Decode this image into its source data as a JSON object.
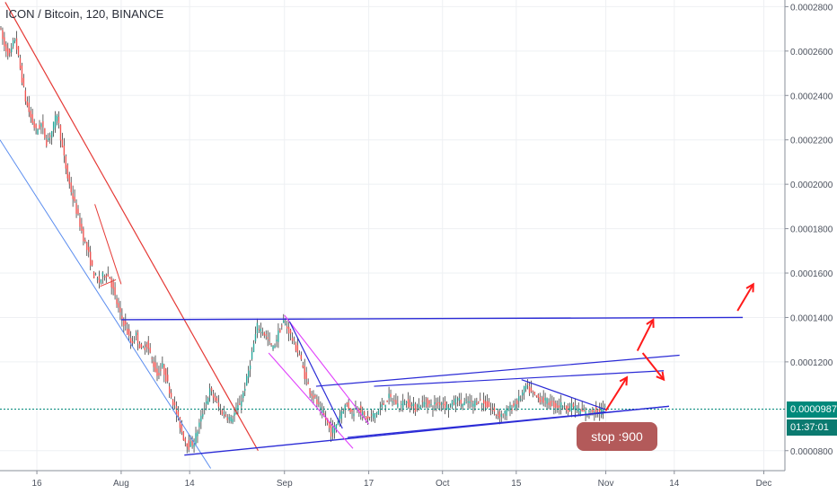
{
  "title": "ICON / Bitcoin, 120, BINANCE",
  "colors": {
    "up": "#26a69a",
    "down": "#ef5350",
    "wick": "#222222",
    "grid": "#eef0f3",
    "axis_text": "#4c525e",
    "blue_line": "#2b2bd6",
    "red_line": "#e53935",
    "magenta_line": "#e040fb",
    "light_blue_line": "#5b8def",
    "current_price_line": "#00897b",
    "current_price_bg": "#00897b",
    "countdown_bg": "#0b7a70",
    "annotation_bg": "#b35a5a",
    "arrow": "#ff1a1a"
  },
  "current_price_label": "0.0000987",
  "countdown_label": "01:37:01",
  "annotation_text": "stop :900",
  "chart_data": {
    "type": "candlestick",
    "x_tick_labels": [
      "16",
      "Aug",
      "14",
      "Sep",
      "17",
      "Oct",
      "15",
      "Nov",
      "14",
      "Dec"
    ],
    "x_tick_dates": [
      "2018-07-16",
      "2018-08-01",
      "2018-08-14",
      "2018-09-01",
      "2018-09-17",
      "2018-10-01",
      "2018-10-15",
      "2018-11-01",
      "2018-11-14",
      "2018-12-01"
    ],
    "x_range": [
      "2018-07-09",
      "2018-12-05"
    ],
    "y_range": [
      7.1e-05,
      0.000283
    ],
    "y_tick_labels": [
      "0.0002800",
      "0.0002600",
      "0.0002400",
      "0.0002200",
      "0.0002000",
      "0.0001800",
      "0.0001600",
      "0.0001400",
      "0.0001200",
      "0.0000800"
    ],
    "y_ticks": [
      0.00028,
      0.00026,
      0.00024,
      0.00022,
      0.0002,
      0.00018,
      0.00016,
      0.00014,
      0.00012,
      8e-05
    ],
    "current_price": 9.87e-05,
    "grid": true,
    "price_path": [
      [
        "2018-07-09",
        0.000272
      ],
      [
        "2018-07-10",
        0.000262
      ],
      [
        "2018-07-11",
        0.000258
      ],
      [
        "2018-07-12",
        0.000266
      ],
      [
        "2018-07-13",
        0.000252
      ],
      [
        "2018-07-14",
        0.000238
      ],
      [
        "2018-07-15",
        0.00023
      ],
      [
        "2018-07-16",
        0.000224
      ],
      [
        "2018-07-17",
        0.000227
      ],
      [
        "2018-07-18",
        0.000219
      ],
      [
        "2018-07-19",
        0.000224
      ],
      [
        "2018-07-20",
        0.000232
      ],
      [
        "2018-07-21",
        0.000216
      ],
      [
        "2018-07-22",
        0.000203
      ],
      [
        "2018-07-23",
        0.000194
      ],
      [
        "2018-07-24",
        0.000185
      ],
      [
        "2018-07-25",
        0.000176
      ],
      [
        "2018-07-26",
        0.000168
      ],
      [
        "2018-07-27",
        0.000159
      ],
      [
        "2018-07-28",
        0.000156
      ],
      [
        "2018-07-29",
        0.00016
      ],
      [
        "2018-07-30",
        0.000158
      ],
      [
        "2018-07-31",
        0.000149
      ],
      [
        "2018-08-01",
        0.000141
      ],
      [
        "2018-08-02",
        0.000136
      ],
      [
        "2018-08-03",
        0.000128
      ],
      [
        "2018-08-04",
        0.000132
      ],
      [
        "2018-08-05",
        0.000125
      ],
      [
        "2018-08-06",
        0.000128
      ],
      [
        "2018-08-07",
        0.000121
      ],
      [
        "2018-08-08",
        0.000114
      ],
      [
        "2018-08-09",
        0.000118
      ],
      [
        "2018-08-10",
        0.00011
      ],
      [
        "2018-08-11",
        0.000102
      ],
      [
        "2018-08-12",
        9.4e-05
      ],
      [
        "2018-08-13",
        8.6e-05
      ],
      [
        "2018-08-14",
        8.2e-05
      ],
      [
        "2018-08-15",
        8.4e-05
      ],
      [
        "2018-08-16",
        9.2e-05
      ],
      [
        "2018-08-17",
        0.0001
      ],
      [
        "2018-08-18",
        0.000107
      ],
      [
        "2018-08-19",
        0.000103
      ],
      [
        "2018-08-20",
        9.8e-05
      ],
      [
        "2018-08-21",
        9.6e-05
      ],
      [
        "2018-08-22",
        9.4e-05
      ],
      [
        "2018-08-23",
        9.8e-05
      ],
      [
        "2018-08-24",
        0.000103
      ],
      [
        "2018-08-25",
        0.000112
      ],
      [
        "2018-08-26",
        0.000124
      ],
      [
        "2018-08-27",
        0.000136
      ],
      [
        "2018-08-28",
        0.000134
      ],
      [
        "2018-08-29",
        0.00013
      ],
      [
        "2018-08-30",
        0.000126
      ],
      [
        "2018-08-31",
        0.000133
      ],
      [
        "2018-09-01",
        0.000138
      ],
      [
        "2018-09-02",
        0.000134
      ],
      [
        "2018-09-03",
        0.000128
      ],
      [
        "2018-09-04",
        0.000123
      ],
      [
        "2018-09-05",
        0.000114
      ],
      [
        "2018-09-06",
        0.000107
      ],
      [
        "2018-09-07",
        0.000103
      ],
      [
        "2018-09-08",
        9.8e-05
      ],
      [
        "2018-09-09",
        9.4e-05
      ],
      [
        "2018-09-10",
        8.8e-05
      ],
      [
        "2018-09-11",
        9.2e-05
      ],
      [
        "2018-09-12",
        9.8e-05
      ],
      [
        "2018-09-13",
        0.000101
      ],
      [
        "2018-09-14",
        9.7e-05
      ],
      [
        "2018-09-15",
        0.0001
      ],
      [
        "2018-09-16",
        9.6e-05
      ],
      [
        "2018-09-17",
        9.4e-05
      ],
      [
        "2018-09-18",
        9.6e-05
      ],
      [
        "2018-09-19",
        9.8e-05
      ],
      [
        "2018-09-20",
        0.000101
      ],
      [
        "2018-09-21",
        0.000104
      ],
      [
        "2018-09-22",
        0.000102
      ],
      [
        "2018-09-23",
        0.0001
      ],
      [
        "2018-09-24",
        0.000102
      ],
      [
        "2018-09-25",
        0.000101
      ],
      [
        "2018-09-26",
        9.9e-05
      ],
      [
        "2018-09-27",
        0.000101
      ],
      [
        "2018-09-28",
        0.000102
      ],
      [
        "2018-09-29",
        0.0001
      ],
      [
        "2018-09-30",
        0.000101
      ],
      [
        "2018-10-01",
        0.000102
      ],
      [
        "2018-10-02",
        0.0001
      ],
      [
        "2018-10-03",
        0.000101
      ],
      [
        "2018-10-04",
        0.000103
      ],
      [
        "2018-10-05",
        0.000101
      ],
      [
        "2018-10-06",
        0.000102
      ],
      [
        "2018-10-07",
        0.000101
      ],
      [
        "2018-10-08",
        0.000103
      ],
      [
        "2018-10-09",
        0.000101
      ],
      [
        "2018-10-10",
        0.0001
      ],
      [
        "2018-10-11",
        9.7e-05
      ],
      [
        "2018-10-12",
        9.6e-05
      ],
      [
        "2018-10-13",
        9.7e-05
      ],
      [
        "2018-10-14",
        9.9e-05
      ],
      [
        "2018-10-15",
        0.000101
      ],
      [
        "2018-10-16",
        0.000104
      ],
      [
        "2018-10-17",
        0.000109
      ],
      [
        "2018-10-18",
        0.000106
      ],
      [
        "2018-10-19",
        0.000104
      ],
      [
        "2018-10-20",
        0.000103
      ],
      [
        "2018-10-21",
        0.000102
      ],
      [
        "2018-10-22",
        0.000101
      ],
      [
        "2018-10-23",
        0.0001
      ],
      [
        "2018-10-24",
        0.000101
      ],
      [
        "2018-10-25",
        9.9e-05
      ],
      [
        "2018-10-26",
        0.0001
      ],
      [
        "2018-10-27",
        9.8e-05
      ],
      [
        "2018-10-28",
        9.7e-05
      ],
      [
        "2018-10-29",
        9.7e-05
      ],
      [
        "2018-10-30",
        9.85e-05
      ],
      [
        "2018-10-31",
        9.75e-05
      ],
      [
        "2018-11-01",
        9.87e-05
      ]
    ],
    "trendlines": [
      {
        "name": "upper-channel-red",
        "color": "red",
        "from": [
          "2018-07-10",
          0.000282
        ],
        "to": [
          "2018-08-27",
          8e-05
        ],
        "width": 1.2
      },
      {
        "name": "lower-channel-lightblue",
        "color": "light_blue",
        "from": [
          "2018-07-09",
          0.00022
        ],
        "to": [
          "2018-08-18",
          7.2e-05
        ],
        "width": 1
      },
      {
        "name": "mini-trend-red",
        "color": "red",
        "from": [
          "2018-07-27",
          0.000191
        ],
        "to": [
          "2018-08-01",
          0.000155
        ],
        "width": 1
      },
      {
        "name": "mini-base-red",
        "color": "red",
        "from": [
          "2018-07-28",
          0.000154
        ],
        "to": [
          "2018-07-31",
          0.000157
        ],
        "width": 1
      },
      {
        "name": "horizontal-resistance-blue",
        "color": "blue",
        "from": [
          "2018-08-01",
          0.000139
        ],
        "to": [
          "2018-11-27",
          0.00014
        ],
        "width": 1.4
      },
      {
        "name": "long-support-blue",
        "color": "blue",
        "from": [
          "2018-08-13",
          7.8e-05
        ],
        "to": [
          "2018-11-13",
          0.0001
        ],
        "width": 1.4
      },
      {
        "name": "magenta-upper",
        "color": "magenta",
        "from": [
          "2018-09-01",
          0.000141
        ],
        "to": [
          "2018-09-17",
          9.2e-05
        ],
        "width": 1.1
      },
      {
        "name": "magenta-lower",
        "color": "magenta",
        "from": [
          "2018-08-29",
          0.000124
        ],
        "to": [
          "2018-09-14",
          8.1e-05
        ],
        "width": 1.1
      },
      {
        "name": "sep-down-blue",
        "color": "blue",
        "from": [
          "2018-09-02",
          0.000138
        ],
        "to": [
          "2018-09-12",
          9e-05
        ],
        "width": 1.2
      },
      {
        "name": "rising-wedge-upper-blue",
        "color": "blue",
        "from": [
          "2018-09-07",
          0.000109
        ],
        "to": [
          "2018-11-15",
          0.000123
        ],
        "width": 1.2
      },
      {
        "name": "rising-wedge-lower-blue",
        "color": "blue",
        "from": [
          "2018-09-13",
          8.6e-05
        ],
        "to": [
          "2018-11-13",
          0.0001
        ],
        "width": 1.2
      },
      {
        "name": "mid-line-blue",
        "color": "blue",
        "from": [
          "2018-09-18",
          0.000109
        ],
        "to": [
          "2018-11-12",
          0.000116
        ],
        "width": 1.2
      },
      {
        "name": "oct-down-blue",
        "color": "blue",
        "from": [
          "2018-10-16",
          0.000112
        ],
        "to": [
          "2018-11-01",
          9.85e-05
        ],
        "width": 1.2
      },
      {
        "name": "bottom-blue",
        "color": "blue",
        "from": [
          "2018-10-26",
          9.55e-05
        ],
        "to": [
          "2018-11-01",
          9.75e-05
        ],
        "width": 1.2
      },
      {
        "name": "stop-marker-red",
        "color": "red",
        "from": [
          "2018-10-28",
          9.05e-05
        ],
        "to": [
          "2018-10-31",
          9e-05
        ],
        "width": 1.6
      }
    ],
    "arrows": [
      {
        "name": "arrow-up-1",
        "from": [
          "2018-11-01",
          9.8e-05
        ],
        "to": [
          "2018-11-05",
          0.000113
        ]
      },
      {
        "name": "arrow-up-2",
        "from": [
          "2018-11-07",
          0.000125
        ],
        "to": [
          "2018-11-10",
          0.000139
        ]
      },
      {
        "name": "arrow-down-1",
        "from": [
          "2018-11-08",
          0.000124
        ],
        "to": [
          "2018-11-12",
          0.000112
        ]
      },
      {
        "name": "arrow-up-3",
        "from": [
          "2018-11-26",
          0.000143
        ],
        "to": [
          "2018-11-29",
          0.000155
        ]
      }
    ]
  }
}
